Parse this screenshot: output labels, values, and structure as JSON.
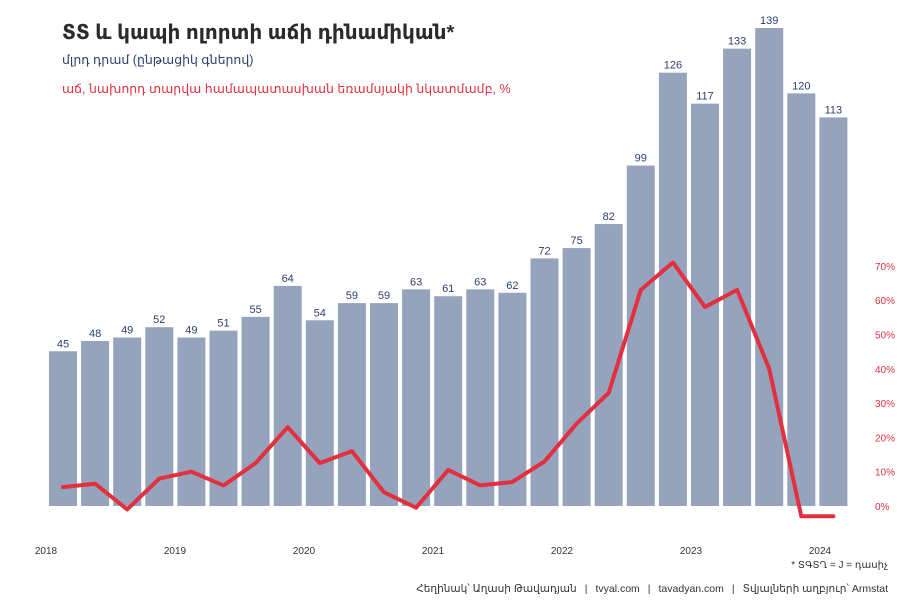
{
  "header": {
    "title": "ՏՏ և կապի ոլորտի աճի դինամիկան*",
    "subtitle": "մլրդ դրամ (ընթացիկ գներով)",
    "subtitle2": "աճ, նախորդ տարվա համապատասխան եռամսյակի նկատմամբ, %"
  },
  "footnote": "* ՏԳՏՂ = J = դասիչ",
  "footer": {
    "author": "Հեղինակ՝ Աղասի Թավադյան",
    "site1": "tvyal.com",
    "site2": "tavadyan.com",
    "source": "Տվյալների աղբյուր՝ Armstat",
    "separator": "|"
  },
  "colors": {
    "bar": "#95a3bc",
    "line": "#e3303f",
    "label": "#2a3f6c",
    "title": "#2b2b2b"
  },
  "chart_data": {
    "type": "bar",
    "x_tick_labels": [
      "2018",
      "2019",
      "2020",
      "2021",
      "2022",
      "2023",
      "2024"
    ],
    "series": [
      {
        "type": "bar",
        "values": [
          45,
          48,
          49,
          52,
          49,
          51,
          55,
          64,
          54,
          59,
          59,
          63,
          61,
          63,
          62,
          72,
          75,
          82,
          99,
          126,
          117,
          133,
          139,
          120,
          113
        ]
      },
      {
        "type": "line",
        "axis": "right",
        "values": [
          5.5,
          6.5,
          -1,
          8,
          10,
          6,
          12.5,
          23,
          12.5,
          16,
          4,
          -0.5,
          10.5,
          6,
          7,
          13,
          24,
          33,
          63,
          71,
          58,
          63,
          40,
          -3,
          -3
        ]
      }
    ],
    "y2_ticks": [
      "0%",
      "10%",
      "20%",
      "30%",
      "40%",
      "50%",
      "60%",
      "70%"
    ],
    "y2lim": [
      0,
      70
    ],
    "data_labels": true,
    "grid": false
  }
}
